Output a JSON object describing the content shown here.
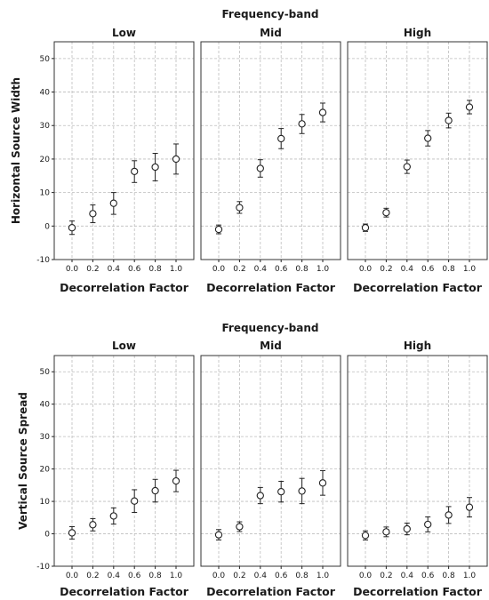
{
  "colors": {
    "marker": "#222222",
    "grid": "#bdbdbd",
    "frame": "#333333"
  },
  "chart_data": [
    {
      "type": "scatter",
      "title": "Frequency-band",
      "ylabel": "Horizontal Source Width",
      "xlabel": "Decorrelation Factor",
      "ylim": [
        -10,
        55
      ],
      "yticks": [
        -10,
        0,
        10,
        20,
        30,
        40,
        50
      ],
      "xticks": [
        0.0,
        0.2,
        0.4,
        0.6,
        0.8,
        1.0
      ],
      "xtick_labels": [
        "0.0",
        "0.2",
        "0.4",
        "0.6",
        "0.8",
        "1.0"
      ],
      "grid": true,
      "error_bars": true,
      "panels": [
        {
          "name": "Low",
          "x": [
            0.0,
            0.2,
            0.4,
            0.6,
            0.8,
            1.0
          ],
          "y": [
            -0.5,
            3.7,
            6.8,
            16.3,
            17.6,
            20.0
          ],
          "err_low": [
            -2.5,
            1.0,
            3.5,
            13.0,
            13.5,
            15.5
          ],
          "err_high": [
            1.5,
            6.3,
            10.0,
            19.5,
            21.7,
            24.5
          ]
        },
        {
          "name": "Mid",
          "x": [
            0.0,
            0.2,
            0.4,
            0.6,
            0.8,
            1.0
          ],
          "y": [
            -1.0,
            5.5,
            17.2,
            26.1,
            30.5,
            33.9
          ],
          "err_low": [
            -2.3,
            3.8,
            14.6,
            23.1,
            27.6,
            31.1
          ],
          "err_high": [
            0.3,
            7.3,
            19.8,
            29.1,
            33.3,
            36.7
          ]
        },
        {
          "name": "High",
          "x": [
            0.0,
            0.2,
            0.4,
            0.6,
            0.8,
            1.0
          ],
          "y": [
            -0.5,
            4.0,
            17.7,
            26.2,
            31.5,
            35.5
          ],
          "err_low": [
            -1.6,
            2.7,
            15.7,
            23.9,
            29.3,
            33.5
          ],
          "err_high": [
            0.6,
            5.3,
            19.7,
            28.5,
            33.7,
            37.5
          ]
        }
      ]
    },
    {
      "type": "scatter",
      "title": "Frequency-band",
      "ylabel": "Vertical Source Spread",
      "xlabel": "Decorrelation Factor",
      "ylim": [
        -10,
        55
      ],
      "yticks": [
        -10,
        0,
        10,
        20,
        30,
        40,
        50
      ],
      "xticks": [
        0.0,
        0.2,
        0.4,
        0.6,
        0.8,
        1.0
      ],
      "xtick_labels": [
        "0.0",
        "0.2",
        "0.4",
        "0.6",
        "0.8",
        "1.0"
      ],
      "grid": true,
      "error_bars": true,
      "panels": [
        {
          "name": "Low",
          "x": [
            0.0,
            0.2,
            0.4,
            0.6,
            0.8,
            1.0
          ],
          "y": [
            0.3,
            2.8,
            5.5,
            10.1,
            13.3,
            16.3
          ],
          "err_low": [
            -1.6,
            0.9,
            3.0,
            6.6,
            9.8,
            13.0
          ],
          "err_high": [
            2.2,
            4.7,
            8.0,
            13.6,
            16.8,
            19.6
          ]
        },
        {
          "name": "Mid",
          "x": [
            0.0,
            0.2,
            0.4,
            0.6,
            0.8,
            1.0
          ],
          "y": [
            -0.3,
            2.2,
            11.8,
            13.0,
            13.2,
            15.7
          ],
          "err_low": [
            -1.9,
            0.7,
            9.3,
            9.8,
            9.3,
            11.9
          ],
          "err_high": [
            1.3,
            3.7,
            14.3,
            16.2,
            17.1,
            19.5
          ]
        },
        {
          "name": "High",
          "x": [
            0.0,
            0.2,
            0.4,
            0.6,
            0.8,
            1.0
          ],
          "y": [
            -0.5,
            0.6,
            1.5,
            2.9,
            5.8,
            8.2
          ],
          "err_low": [
            -1.9,
            -0.9,
            -0.3,
            0.6,
            3.2,
            5.2
          ],
          "err_high": [
            0.9,
            2.1,
            3.3,
            5.2,
            8.4,
            11.2
          ]
        }
      ]
    }
  ]
}
